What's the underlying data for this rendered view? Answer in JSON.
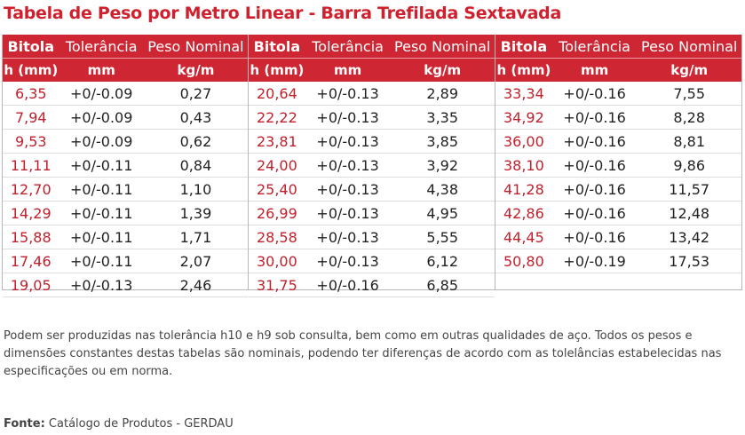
{
  "title": "Tabela de Peso por Metro Linear - Barra Trefilada Sextavada",
  "headers": {
    "col1": "Bitola",
    "col2": "Tolerância",
    "col3": "Peso Nominal",
    "unit1": "h (mm)",
    "unit2": "mm",
    "unit3": "kg/m"
  },
  "blocks": [
    {
      "rows": [
        {
          "bitola": "6,35",
          "tol": "+0/-0.09",
          "peso": "0,27"
        },
        {
          "bitola": "7,94",
          "tol": "+0/-0.09",
          "peso": "0,43"
        },
        {
          "bitola": "9,53",
          "tol": "+0/-0.09",
          "peso": "0,62"
        },
        {
          "bitola": "11,11",
          "tol": "+0/-0.11",
          "peso": "0,84"
        },
        {
          "bitola": "12,70",
          "tol": "+0/-0.11",
          "peso": "1,10"
        },
        {
          "bitola": "14,29",
          "tol": "+0/-0.11",
          "peso": "1,39"
        },
        {
          "bitola": "15,88",
          "tol": "+0/-0.11",
          "peso": "1,71"
        },
        {
          "bitola": "17,46",
          "tol": "+0/-0.11",
          "peso": "2,07"
        },
        {
          "bitola": "19,05",
          "tol": "+0/-0.13",
          "peso": "2,46"
        }
      ]
    },
    {
      "rows": [
        {
          "bitola": "20,64",
          "tol": "+0/-0.13",
          "peso": "2,89"
        },
        {
          "bitola": "22,22",
          "tol": "+0/-0.13",
          "peso": "3,35"
        },
        {
          "bitola": "23,81",
          "tol": "+0/-0.13",
          "peso": "3,85"
        },
        {
          "bitola": "24,00",
          "tol": "+0/-0.13",
          "peso": "3,92"
        },
        {
          "bitola": "25,40",
          "tol": "+0/-0.13",
          "peso": "4,38"
        },
        {
          "bitola": "26,99",
          "tol": "+0/-0.13",
          "peso": "4,95"
        },
        {
          "bitola": "28,58",
          "tol": "+0/-0.13",
          "peso": "5,55"
        },
        {
          "bitola": "30,00",
          "tol": "+0/-0.13",
          "peso": "6,12"
        },
        {
          "bitola": "31,75",
          "tol": "+0/-0.16",
          "peso": "6,85"
        }
      ]
    },
    {
      "rows": [
        {
          "bitola": "33,34",
          "tol": "+0/-0.16",
          "peso": "7,55"
        },
        {
          "bitola": "34,92",
          "tol": "+0/-0.16",
          "peso": "8,28"
        },
        {
          "bitola": "36,00",
          "tol": "+0/-0.16",
          "peso": "8,81"
        },
        {
          "bitola": "38,10",
          "tol": "+0/-0.16",
          "peso": "9,86"
        },
        {
          "bitola": "41,28",
          "tol": "+0/-0.16",
          "peso": "11,57"
        },
        {
          "bitola": "42,86",
          "tol": "+0/-0.16",
          "peso": "12,48"
        },
        {
          "bitola": "44,45",
          "tol": "+0/-0.16",
          "peso": "13,42"
        },
        {
          "bitola": "50,80",
          "tol": "+0/-0.19",
          "peso": "17,53"
        }
      ]
    }
  ],
  "note": "Podem ser produzidas nas tolerância h10 e h9 sob consulta, bem como em outras qualidades de aço. Todos os pesos e dimensões constantes destas tabelas são nominais, podendo ter diferenças de acordo com as tolelâncias estabelecidas nas especificações ou em norma.",
  "source": {
    "label": "Fonte:",
    "text": "Catálogo de Produtos - GERDAU"
  },
  "colors": {
    "accent": "#cf2633",
    "bitola_text": "#c0202c",
    "title": "#d0202e"
  }
}
